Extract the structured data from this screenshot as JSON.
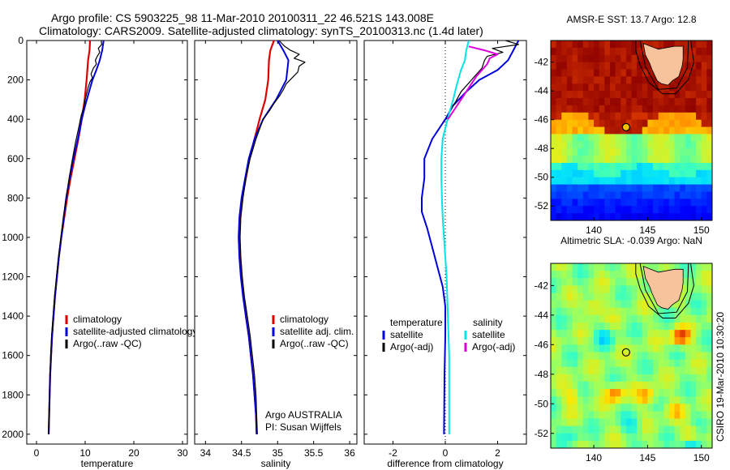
{
  "header": {
    "title_line1": "Argo profile: CS 5903225_98 11-Mar-2010 20100311_22 46.521S 143.008E",
    "title_line2": "Climatology: CARS2009. Satellite-adjusted climatology: synTS_20100313.nc (1.4d later)"
  },
  "side_label": "CSIRO 19-Mar-2010 10:30:20",
  "colors": {
    "climatology": "#dd0000",
    "satellite": "#0000dd",
    "argo": "#000000",
    "salinity_satellite": "#00e5e5",
    "salinity_argo": "#dd00dd"
  },
  "chart_data": [
    {
      "type": "line",
      "panel": "temperature",
      "xlabel": "temperature",
      "ylabel": "",
      "xlim": [
        -2,
        31
      ],
      "ylim": [
        2050,
        0
      ],
      "y_reversed": true,
      "xticks": [
        0,
        10,
        20,
        30
      ],
      "xtick_labels": [
        "0",
        "10",
        "20",
        "30"
      ],
      "yticks": [
        0,
        200,
        400,
        600,
        800,
        1000,
        1200,
        1400,
        1600,
        1800,
        2000
      ],
      "ytick_labels": [
        "0",
        "200",
        "400",
        "600",
        "800",
        "1000",
        "1200",
        "1400",
        "1600",
        "1800",
        "2000"
      ],
      "legend": [
        "climatology",
        "satellite-adjusted climatology",
        "Argo(..raw -QC)"
      ],
      "legend_position": "lower-right",
      "series": [
        {
          "name": "climatology",
          "color_key": "climatology",
          "width": 2.2,
          "points": [
            [
              11.0,
              0
            ],
            [
              10.9,
              50
            ],
            [
              10.6,
              100
            ],
            [
              10.3,
              200
            ],
            [
              9.9,
              300
            ],
            [
              9.3,
              400
            ],
            [
              8.6,
              500
            ],
            [
              7.8,
              600
            ],
            [
              7.0,
              700
            ],
            [
              6.3,
              800
            ],
            [
              5.7,
              900
            ],
            [
              5.1,
              1000
            ],
            [
              4.6,
              1100
            ],
            [
              4.2,
              1200
            ],
            [
              3.8,
              1300
            ],
            [
              3.5,
              1400
            ],
            [
              3.2,
              1500
            ],
            [
              3.0,
              1600
            ],
            [
              2.8,
              1700
            ],
            [
              2.7,
              1800
            ],
            [
              2.6,
              1900
            ],
            [
              2.5,
              2000
            ]
          ]
        },
        {
          "name": "satellite-adjusted climatology",
          "color_key": "satellite",
          "width": 2,
          "points": [
            [
              13.8,
              0
            ],
            [
              13.5,
              50
            ],
            [
              13.0,
              100
            ],
            [
              12.3,
              150
            ],
            [
              11.5,
              200
            ],
            [
              10.8,
              260
            ],
            [
              10.0,
              330
            ],
            [
              9.3,
              400
            ],
            [
              8.5,
              500
            ],
            [
              7.6,
              600
            ],
            [
              6.8,
              700
            ],
            [
              6.1,
              800
            ],
            [
              5.6,
              900
            ],
            [
              5.1,
              1000
            ],
            [
              4.6,
              1100
            ],
            [
              4.2,
              1200
            ],
            [
              3.8,
              1300
            ],
            [
              3.5,
              1400
            ],
            [
              3.2,
              1500
            ],
            [
              3.0,
              1600
            ],
            [
              2.8,
              1700
            ],
            [
              2.7,
              1800
            ],
            [
              2.6,
              1900
            ],
            [
              2.5,
              2000
            ]
          ]
        },
        {
          "name": "Argo(..raw -QC)",
          "color_key": "argo",
          "width": 1.2,
          "points": [
            [
              13.3,
              0
            ],
            [
              13.4,
              20
            ],
            [
              12.7,
              40
            ],
            [
              13.0,
              60
            ],
            [
              12.5,
              80
            ],
            [
              12.1,
              100
            ],
            [
              12.3,
              120
            ],
            [
              11.7,
              140
            ],
            [
              11.2,
              170
            ],
            [
              11.5,
              190
            ],
            [
              11.0,
              210
            ],
            [
              10.6,
              240
            ],
            [
              10.3,
              270
            ],
            [
              10.0,
              300
            ],
            [
              9.7,
              340
            ],
            [
              9.2,
              380
            ],
            [
              8.7,
              440
            ],
            [
              8.0,
              520
            ],
            [
              7.4,
              600
            ],
            [
              6.7,
              700
            ],
            [
              6.1,
              800
            ],
            [
              5.5,
              900
            ],
            [
              5.0,
              1000
            ],
            [
              4.5,
              1100
            ],
            [
              4.1,
              1200
            ],
            [
              3.7,
              1300
            ],
            [
              3.4,
              1400
            ],
            [
              3.1,
              1500
            ],
            [
              2.9,
              1600
            ],
            [
              2.8,
              1700
            ],
            [
              2.7,
              1800
            ],
            [
              2.6,
              1900
            ],
            [
              2.5,
              2000
            ]
          ]
        }
      ]
    },
    {
      "type": "line",
      "panel": "salinity",
      "xlabel": "salinity",
      "ylabel": "",
      "xlim": [
        33.85,
        36.1
      ],
      "ylim": [
        2050,
        0
      ],
      "y_reversed": true,
      "xticks": [
        34,
        34.5,
        35,
        35.5,
        36
      ],
      "xtick_labels": [
        "34",
        "34.5",
        "35",
        "35.5",
        "36"
      ],
      "legend": [
        "climatology",
        "satellite adj. clim.",
        "Argo(..raw -QC)"
      ],
      "legend_position": "lower-right",
      "annotation": [
        "Argo AUSTRALIA",
        "PI: Susan Wijffels"
      ],
      "series": [
        {
          "name": "climatology",
          "color_key": "climatology",
          "width": 2.2,
          "points": [
            [
              34.95,
              0
            ],
            [
              34.9,
              50
            ],
            [
              34.88,
              100
            ],
            [
              34.87,
              200
            ],
            [
              34.83,
              300
            ],
            [
              34.75,
              400
            ],
            [
              34.68,
              500
            ],
            [
              34.61,
              600
            ],
            [
              34.56,
              700
            ],
            [
              34.51,
              800
            ],
            [
              34.48,
              900
            ],
            [
              34.47,
              1000
            ],
            [
              34.48,
              1100
            ],
            [
              34.5,
              1200
            ],
            [
              34.53,
              1300
            ],
            [
              34.56,
              1400
            ],
            [
              34.6,
              1500
            ],
            [
              34.63,
              1600
            ],
            [
              34.66,
              1700
            ],
            [
              34.68,
              1800
            ],
            [
              34.7,
              1900
            ],
            [
              34.71,
              2000
            ]
          ]
        },
        {
          "name": "satellite adj. clim.",
          "color_key": "satellite",
          "width": 2,
          "points": [
            [
              35.0,
              0
            ],
            [
              35.08,
              50
            ],
            [
              35.15,
              100
            ],
            [
              35.12,
              200
            ],
            [
              34.98,
              300
            ],
            [
              34.8,
              400
            ],
            [
              34.68,
              500
            ],
            [
              34.6,
              600
            ],
            [
              34.55,
              700
            ],
            [
              34.5,
              800
            ],
            [
              34.47,
              900
            ],
            [
              34.46,
              1000
            ],
            [
              34.47,
              1100
            ],
            [
              34.49,
              1200
            ],
            [
              34.52,
              1300
            ],
            [
              34.56,
              1400
            ],
            [
              34.6,
              1500
            ],
            [
              34.63,
              1600
            ],
            [
              34.66,
              1700
            ],
            [
              34.68,
              1800
            ],
            [
              34.7,
              1900
            ],
            [
              34.71,
              2000
            ]
          ]
        },
        {
          "name": "Argo(..raw -QC)",
          "color_key": "argo",
          "width": 1.2,
          "points": [
            [
              35.02,
              0
            ],
            [
              35.1,
              30
            ],
            [
              35.18,
              50
            ],
            [
              35.3,
              70
            ],
            [
              35.23,
              90
            ],
            [
              35.38,
              110
            ],
            [
              35.3,
              130
            ],
            [
              35.28,
              160
            ],
            [
              35.2,
              190
            ],
            [
              35.12,
              220
            ],
            [
              35.08,
              250
            ],
            [
              35.03,
              280
            ],
            [
              34.95,
              320
            ],
            [
              34.88,
              360
            ],
            [
              34.8,
              400
            ],
            [
              34.7,
              500
            ],
            [
              34.62,
              600
            ],
            [
              34.56,
              700
            ],
            [
              34.52,
              800
            ],
            [
              34.49,
              900
            ],
            [
              34.48,
              1000
            ],
            [
              34.49,
              1100
            ],
            [
              34.51,
              1200
            ],
            [
              34.54,
              1300
            ],
            [
              34.58,
              1400
            ],
            [
              34.62,
              1500
            ],
            [
              34.65,
              1600
            ],
            [
              34.68,
              1700
            ],
            [
              34.7,
              1800
            ],
            [
              34.71,
              1900
            ],
            [
              34.72,
              2000
            ]
          ]
        }
      ]
    },
    {
      "type": "line",
      "panel": "difference",
      "xlabel": "difference from climatology",
      "ylabel": "",
      "xlim": [
        -3.1,
        3.1
      ],
      "ylim": [
        2050,
        0
      ],
      "y_reversed": true,
      "xticks": [
        -2,
        0,
        2
      ],
      "xtick_labels": [
        "-2",
        "0",
        "2"
      ],
      "zero_line": true,
      "legend_groups": [
        {
          "title": "temperature",
          "entries": [
            "satellite",
            "Argo(-adj)"
          ]
        },
        {
          "title": "salinity",
          "entries": [
            "satellite",
            "Argo(-adj)"
          ]
        }
      ],
      "legend_position": "lower-center",
      "series": [
        {
          "name": "satellite",
          "group": "temperature",
          "color_key": "satellite",
          "width": 2,
          "points": [
            [
              2.8,
              0
            ],
            [
              2.6,
              50
            ],
            [
              2.4,
              100
            ],
            [
              2.0,
              150
            ],
            [
              1.3,
              200
            ],
            [
              0.8,
              260
            ],
            [
              0.3,
              330
            ],
            [
              0.0,
              400
            ],
            [
              -0.5,
              500
            ],
            [
              -0.8,
              600
            ],
            [
              -0.8,
              700
            ],
            [
              -0.9,
              800
            ],
            [
              -0.9,
              870
            ],
            [
              -0.7,
              950
            ],
            [
              -0.5,
              1050
            ],
            [
              -0.3,
              1150
            ],
            [
              -0.1,
              1250
            ],
            [
              0.0,
              1350
            ],
            [
              0.0,
              1500
            ],
            [
              -0.03,
              1700
            ],
            [
              -0.05,
              2000
            ]
          ]
        },
        {
          "name": "Argo(-adj)",
          "group": "temperature",
          "color_key": "argo",
          "width": 1.2,
          "points": [
            [
              2.3,
              0
            ],
            [
              2.8,
              20
            ],
            [
              1.8,
              40
            ],
            [
              2.2,
              60
            ],
            [
              1.6,
              80
            ],
            [
              1.5,
              100
            ],
            [
              1.4,
              140
            ],
            [
              1.0,
              200
            ],
            [
              0.6,
              260
            ],
            [
              0.4,
              310
            ],
            [
              0.2,
              350
            ],
            [
              0.05,
              400
            ]
          ]
        },
        {
          "name": "satellite",
          "group": "salinity",
          "color_key": "salinity_satellite",
          "width": 2,
          "points": [
            [
              0.9,
              0
            ],
            [
              0.8,
              50
            ],
            [
              0.75,
              100
            ],
            [
              0.6,
              150
            ],
            [
              0.45,
              220
            ],
            [
              0.3,
              300
            ],
            [
              0.15,
              370
            ],
            [
              0.05,
              420
            ],
            [
              -0.1,
              500
            ],
            [
              -0.15,
              600
            ],
            [
              -0.15,
              700
            ],
            [
              -0.13,
              800
            ],
            [
              -0.1,
              900
            ],
            [
              -0.05,
              1000
            ],
            [
              0.0,
              1100
            ],
            [
              0.05,
              1200
            ],
            [
              0.1,
              1400
            ],
            [
              0.15,
              1600
            ],
            [
              0.15,
              1800
            ],
            [
              0.15,
              2000
            ]
          ]
        },
        {
          "name": "Argo(-adj)",
          "group": "salinity",
          "color_key": "salinity_argo",
          "width": 2,
          "points": [
            [
              0.9,
              30
            ],
            [
              1.5,
              50
            ],
            [
              2.0,
              70
            ],
            [
              1.7,
              90
            ],
            [
              1.6,
              120
            ],
            [
              1.2,
              180
            ],
            [
              0.9,
              240
            ],
            [
              0.6,
              300
            ],
            [
              0.3,
              360
            ],
            [
              0.1,
              400
            ]
          ]
        }
      ]
    }
  ],
  "maps": [
    {
      "title": "AMSR-E SST: 13.7 Argo: 12.8",
      "kind": "sst",
      "xlim": [
        136,
        151
      ],
      "ylim": [
        -53,
        -40.5
      ],
      "xticks": [
        140,
        145,
        150
      ],
      "yticks": [
        -42,
        -44,
        -46,
        -48,
        -50,
        -52
      ],
      "marker": {
        "lon": 143.0,
        "lat": -46.52
      },
      "land_color": "#f7c39c"
    },
    {
      "title": "Altimetric SLA: -0.039 Argo: NaN",
      "kind": "sla",
      "xlim": [
        136,
        151
      ],
      "ylim": [
        -53,
        -40.5
      ],
      "xticks": [
        140,
        145,
        150
      ],
      "yticks": [
        -42,
        -44,
        -46,
        -48,
        -50,
        -52
      ],
      "marker": {
        "lon": 143.0,
        "lat": -46.52
      },
      "land_color": "#f7c39c"
    }
  ]
}
